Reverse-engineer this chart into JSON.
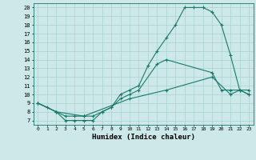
{
  "xlabel": "Humidex (Indice chaleur)",
  "background_color": "#cce8e8",
  "grid_color": "#aad0d0",
  "line_color": "#1a7a6a",
  "xlim": [
    -0.5,
    23.5
  ],
  "ylim": [
    6.5,
    20.5
  ],
  "xticks": [
    0,
    1,
    2,
    3,
    4,
    5,
    6,
    7,
    8,
    9,
    10,
    11,
    12,
    13,
    14,
    15,
    16,
    17,
    18,
    19,
    20,
    21,
    22,
    23
  ],
  "yticks": [
    7,
    8,
    9,
    10,
    11,
    12,
    13,
    14,
    15,
    16,
    17,
    18,
    19,
    20
  ],
  "curve1_x": [
    0,
    1,
    2,
    3,
    4,
    5,
    6,
    7,
    8,
    9,
    10,
    11,
    12,
    13,
    14,
    15,
    16,
    17,
    18,
    19,
    20,
    21,
    22,
    23
  ],
  "curve1_y": [
    9.0,
    8.5,
    8.0,
    7.0,
    7.0,
    7.0,
    7.0,
    8.0,
    8.5,
    10.0,
    10.5,
    11.0,
    13.3,
    15.0,
    16.5,
    18.0,
    20.0,
    20.0,
    20.0,
    19.5,
    18.0,
    14.5,
    10.5,
    10.5
  ],
  "curve2_x": [
    0,
    2,
    3,
    4,
    5,
    6,
    7,
    8,
    9,
    10,
    11,
    13,
    14,
    19,
    20,
    21,
    22,
    23
  ],
  "curve2_y": [
    9.0,
    8.0,
    7.5,
    7.5,
    7.5,
    7.5,
    8.0,
    8.5,
    9.5,
    10.0,
    10.5,
    13.5,
    14.0,
    12.5,
    10.5,
    10.5,
    10.5,
    10.0
  ],
  "curve3_x": [
    0,
    2,
    5,
    10,
    14,
    19,
    21,
    22,
    23
  ],
  "curve3_y": [
    9.0,
    8.0,
    7.5,
    9.5,
    10.5,
    12.0,
    10.0,
    10.5,
    10.0
  ]
}
